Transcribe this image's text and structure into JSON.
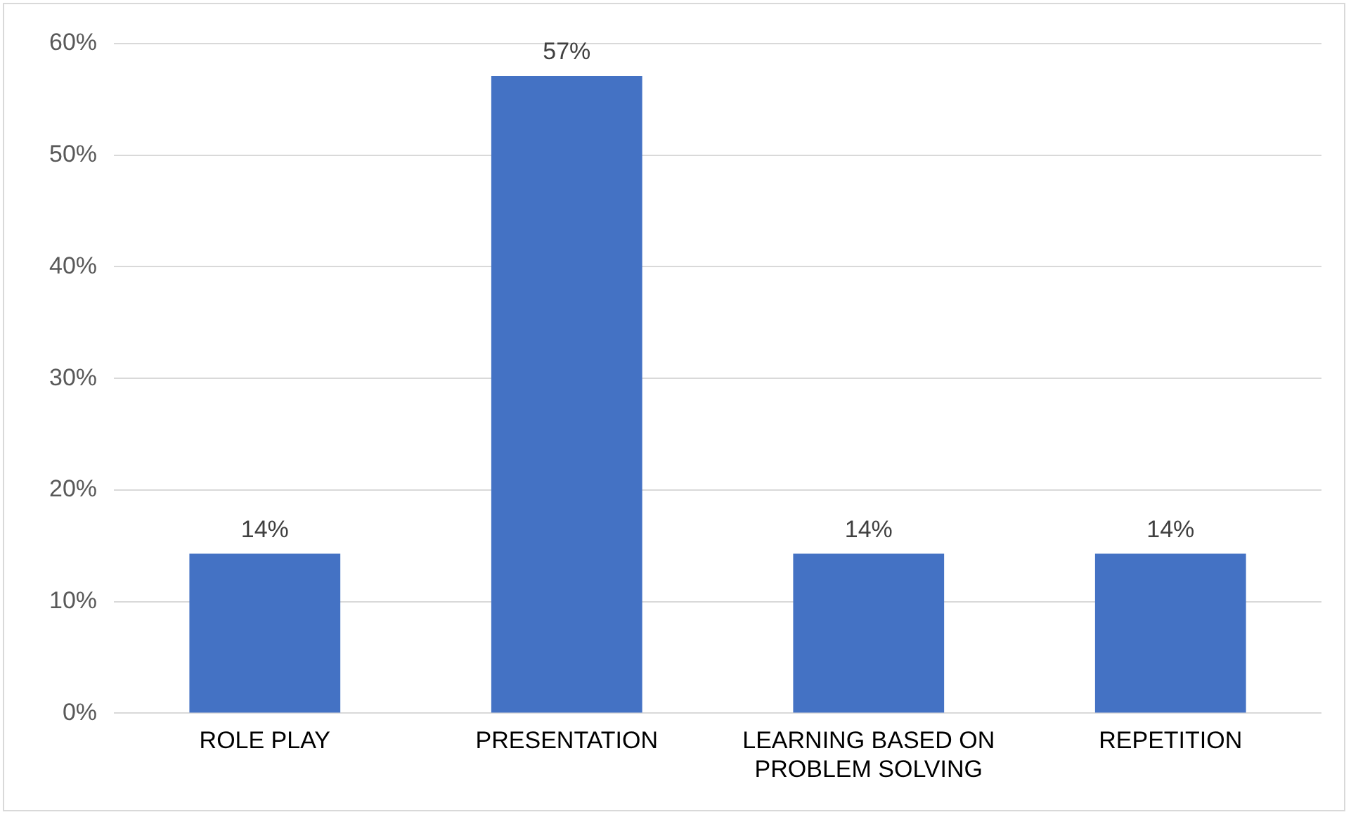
{
  "chart_data": {
    "type": "bar",
    "categories": [
      "ROLE PLAY",
      "PRESENTATION",
      "LEARNING BASED ON PROBLEM SOLVING",
      "REPETITION"
    ],
    "values": [
      14.3,
      57.1,
      14.3,
      14.3
    ],
    "value_labels": [
      "14%",
      "57%",
      "14%",
      "14%"
    ],
    "color": "#4472c4",
    "ylim": [
      0,
      60
    ],
    "yticks": [
      {
        "value": 0,
        "label": "0%"
      },
      {
        "value": 10,
        "label": "10%"
      },
      {
        "value": 20,
        "label": "20%"
      },
      {
        "value": 30,
        "label": "30%"
      },
      {
        "value": 40,
        "label": "40%"
      },
      {
        "value": 50,
        "label": "50%"
      },
      {
        "value": 60,
        "label": "60%"
      }
    ],
    "grid": "y",
    "legend": false
  }
}
